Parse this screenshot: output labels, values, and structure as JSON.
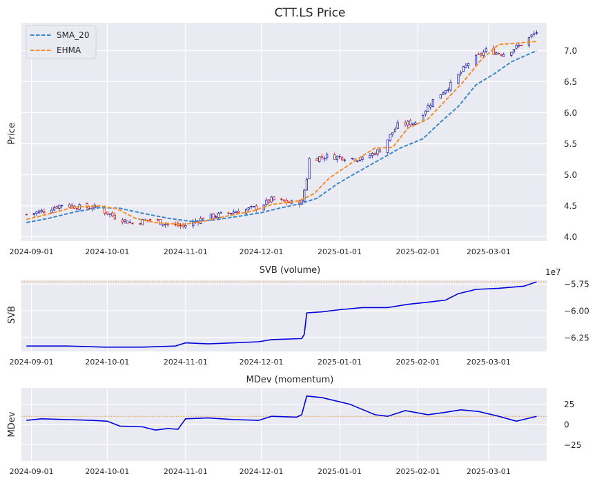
{
  "chart_data": [
    {
      "type": "line",
      "title": "CTT.LS Price",
      "ylabel": "Price",
      "ylim": [
        3.93,
        7.45
      ],
      "yticks": [
        4.0,
        4.5,
        5.0,
        5.5,
        6.0,
        6.5,
        7.0
      ],
      "ytick_labels": [
        "4.0",
        "4.5",
        "5.0",
        "5.5",
        "6.0",
        "6.5",
        "7.0"
      ],
      "x_range": [
        "2024-08-28",
        "2025-03-24"
      ],
      "xticks": [
        "2024-09-01",
        "2024-10-01",
        "2024-11-01",
        "2024-12-01",
        "2025-01-01",
        "2025-02-01",
        "2025-03-01"
      ],
      "xtick_labels": [
        "2024-09-01",
        "2024-10-01",
        "2024-11-01",
        "2024-12-01",
        "2025-01-01",
        "2025-02-01",
        "2025-03-01"
      ],
      "grid": true,
      "legend_position": "top-left",
      "candle_colors": {
        "up": "#1f1fa8",
        "down": "#c41e1e"
      },
      "close_path": [
        [
          "2024-08-30",
          4.36
        ],
        [
          "2024-09-06",
          4.42
        ],
        [
          "2024-09-13",
          4.52
        ],
        [
          "2024-09-20",
          4.48
        ],
        [
          "2024-09-27",
          4.47
        ],
        [
          "2024-10-04",
          4.32
        ],
        [
          "2024-10-11",
          4.22
        ],
        [
          "2024-10-18",
          4.28
        ],
        [
          "2024-10-25",
          4.2
        ],
        [
          "2024-10-31",
          4.17
        ],
        [
          "2024-11-08",
          4.3
        ],
        [
          "2024-11-15",
          4.36
        ],
        [
          "2024-11-22",
          4.42
        ],
        [
          "2024-11-29",
          4.47
        ],
        [
          "2024-12-05",
          4.6
        ],
        [
          "2024-12-12",
          4.55
        ],
        [
          "2024-12-17",
          4.56
        ],
        [
          "2024-12-19",
          4.95
        ],
        [
          "2024-12-20",
          5.25
        ],
        [
          "2024-12-27",
          5.3
        ],
        [
          "2025-01-03",
          5.28
        ],
        [
          "2025-01-10",
          5.25
        ],
        [
          "2025-01-17",
          5.4
        ],
        [
          "2025-01-24",
          5.8
        ],
        [
          "2025-01-31",
          5.85
        ],
        [
          "2025-02-07",
          6.2
        ],
        [
          "2025-02-14",
          6.45
        ],
        [
          "2025-02-21",
          6.8
        ],
        [
          "2025-02-28",
          7.0
        ],
        [
          "2025-03-07",
          6.95
        ],
        [
          "2025-03-14",
          7.1
        ],
        [
          "2025-03-20",
          7.3
        ]
      ],
      "series": [
        {
          "name": "SMA_20",
          "color": "#3a87c8",
          "points": [
            [
              "2024-08-30",
              4.23
            ],
            [
              "2024-09-08",
              4.3
            ],
            [
              "2024-09-18",
              4.4
            ],
            [
              "2024-09-28",
              4.47
            ],
            [
              "2024-10-06",
              4.46
            ],
            [
              "2024-10-15",
              4.38
            ],
            [
              "2024-10-25",
              4.3
            ],
            [
              "2024-11-03",
              4.25
            ],
            [
              "2024-11-12",
              4.27
            ],
            [
              "2024-11-22",
              4.33
            ],
            [
              "2024-12-01",
              4.39
            ],
            [
              "2024-12-08",
              4.46
            ],
            [
              "2024-12-16",
              4.53
            ],
            [
              "2024-12-23",
              4.62
            ],
            [
              "2024-12-31",
              4.85
            ],
            [
              "2025-01-05",
              4.97
            ],
            [
              "2025-01-15",
              5.2
            ],
            [
              "2025-01-25",
              5.43
            ],
            [
              "2025-02-03",
              5.58
            ],
            [
              "2025-02-10",
              5.85
            ],
            [
              "2025-02-17",
              6.1
            ],
            [
              "2025-02-24",
              6.45
            ],
            [
              "2025-03-03",
              6.62
            ],
            [
              "2025-03-10",
              6.82
            ],
            [
              "2025-03-20",
              7.0
            ]
          ]
        },
        {
          "name": "EHMA",
          "color": "#f28e2b",
          "points": [
            [
              "2024-08-30",
              4.28
            ],
            [
              "2024-09-08",
              4.37
            ],
            [
              "2024-09-18",
              4.48
            ],
            [
              "2024-09-28",
              4.5
            ],
            [
              "2024-10-05",
              4.45
            ],
            [
              "2024-10-12",
              4.3
            ],
            [
              "2024-10-20",
              4.23
            ],
            [
              "2024-10-31",
              4.2
            ],
            [
              "2024-11-08",
              4.25
            ],
            [
              "2024-11-18",
              4.34
            ],
            [
              "2024-11-28",
              4.42
            ],
            [
              "2024-12-05",
              4.52
            ],
            [
              "2024-12-16",
              4.58
            ],
            [
              "2024-12-22",
              4.7
            ],
            [
              "2024-12-28",
              4.95
            ],
            [
              "2025-01-08",
              5.25
            ],
            [
              "2025-01-15",
              5.43
            ],
            [
              "2025-01-22",
              5.44
            ],
            [
              "2025-01-28",
              5.75
            ],
            [
              "2025-02-05",
              5.9
            ],
            [
              "2025-02-12",
              6.2
            ],
            [
              "2025-02-19",
              6.5
            ],
            [
              "2025-02-26",
              6.85
            ],
            [
              "2025-03-05",
              7.1
            ],
            [
              "2025-03-12",
              7.12
            ],
            [
              "2025-03-20",
              7.15
            ]
          ]
        }
      ]
    },
    {
      "type": "line",
      "title": "SVB (volume)",
      "ylabel": "SVB",
      "offset_label": "1e7",
      "ylim": [
        -6.38,
        -5.71
      ],
      "yticks": [
        -5.75,
        -6.0,
        -6.25
      ],
      "ytick_labels": [
        "−5.75",
        "−6.00",
        "−6.25"
      ],
      "xticks": [
        "2024-09-01",
        "2024-10-01",
        "2024-11-01",
        "2024-12-01",
        "2025-01-01",
        "2025-02-01",
        "2025-03-01"
      ],
      "xtick_labels": [
        "2024-09-01",
        "2024-10-01",
        "2024-11-01",
        "2024-12-01",
        "2025-01-01",
        "2025-02-01",
        "2025-03-01"
      ],
      "reference_line": -5.73,
      "grid": true,
      "series": [
        {
          "name": "",
          "color": "#0000dd",
          "points": [
            [
              "2024-08-30",
              -6.33
            ],
            [
              "2024-09-15",
              -6.33
            ],
            [
              "2024-09-30",
              -6.34
            ],
            [
              "2024-10-15",
              -6.34
            ],
            [
              "2024-10-28",
              -6.33
            ],
            [
              "2024-11-01",
              -6.3
            ],
            [
              "2024-11-10",
              -6.31
            ],
            [
              "2024-11-20",
              -6.3
            ],
            [
              "2024-11-30",
              -6.29
            ],
            [
              "2024-12-05",
              -6.27
            ],
            [
              "2024-12-17",
              -6.26
            ],
            [
              "2024-12-18",
              -6.22
            ],
            [
              "2024-12-19",
              -6.02
            ],
            [
              "2024-12-25",
              -6.01
            ],
            [
              "2025-01-01",
              -5.99
            ],
            [
              "2025-01-10",
              -5.97
            ],
            [
              "2025-01-20",
              -5.97
            ],
            [
              "2025-01-28",
              -5.94
            ],
            [
              "2025-02-05",
              -5.92
            ],
            [
              "2025-02-12",
              -5.9
            ],
            [
              "2025-02-17",
              -5.84
            ],
            [
              "2025-02-24",
              -5.8
            ],
            [
              "2025-03-05",
              -5.79
            ],
            [
              "2025-03-15",
              -5.77
            ],
            [
              "2025-03-20",
              -5.73
            ]
          ]
        }
      ]
    },
    {
      "type": "line",
      "title": "MDev (momentum)",
      "ylabel": "MDev",
      "ylim": [
        -45,
        45
      ],
      "yticks": [
        25,
        0,
        -25
      ],
      "ytick_labels": [
        "25",
        "0",
        "−25"
      ],
      "xticks": [
        "2024-09-01",
        "2024-10-01",
        "2024-11-01",
        "2024-12-01",
        "2025-01-01",
        "2025-02-01",
        "2025-03-01"
      ],
      "xtick_labels": [
        "2024-09-01",
        "2024-10-01",
        "2024-11-01",
        "2024-12-01",
        "2025-01-01",
        "2025-02-01",
        "2025-03-01"
      ],
      "reference_line": 10,
      "grid": true,
      "series": [
        {
          "name": "",
          "color": "#0000dd",
          "points": [
            [
              "2024-08-30",
              5
            ],
            [
              "2024-09-05",
              7
            ],
            [
              "2024-09-15",
              6
            ],
            [
              "2024-09-25",
              5
            ],
            [
              "2024-10-01",
              4
            ],
            [
              "2024-10-06",
              -2
            ],
            [
              "2024-10-15",
              -3
            ],
            [
              "2024-10-20",
              -7
            ],
            [
              "2024-10-25",
              -5
            ],
            [
              "2024-10-29",
              -6
            ],
            [
              "2024-11-01",
              7
            ],
            [
              "2024-11-10",
              8
            ],
            [
              "2024-11-20",
              6
            ],
            [
              "2024-11-30",
              5
            ],
            [
              "2024-12-05",
              10
            ],
            [
              "2024-12-15",
              9
            ],
            [
              "2024-12-17",
              12
            ],
            [
              "2024-12-19",
              35
            ],
            [
              "2024-12-25",
              33
            ],
            [
              "2025-01-05",
              25
            ],
            [
              "2025-01-15",
              12
            ],
            [
              "2025-01-20",
              10
            ],
            [
              "2025-01-27",
              17
            ],
            [
              "2025-02-05",
              12
            ],
            [
              "2025-02-12",
              15
            ],
            [
              "2025-02-18",
              18
            ],
            [
              "2025-02-25",
              16
            ],
            [
              "2025-03-05",
              10
            ],
            [
              "2025-03-12",
              4
            ],
            [
              "2025-03-20",
              10
            ]
          ]
        }
      ]
    }
  ]
}
